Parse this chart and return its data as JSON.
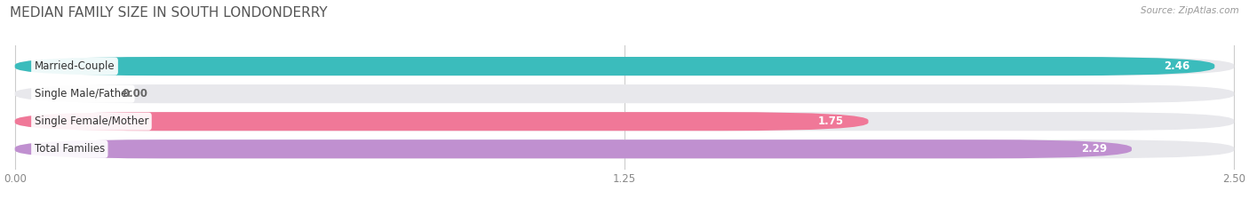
{
  "title": "MEDIAN FAMILY SIZE IN SOUTH LONDONDERRY",
  "source": "Source: ZipAtlas.com",
  "categories": [
    "Married-Couple",
    "Single Male/Father",
    "Single Female/Mother",
    "Total Families"
  ],
  "values": [
    2.46,
    0.0,
    1.75,
    2.29
  ],
  "colors": [
    "#3bbcbc",
    "#a8b8e8",
    "#f07898",
    "#c090d0"
  ],
  "xlim": [
    0,
    2.5
  ],
  "xticks": [
    0.0,
    1.25,
    2.5
  ],
  "xtick_labels": [
    "0.00",
    "1.25",
    "2.50"
  ],
  "bar_height": 0.68,
  "background_color": "#ffffff",
  "bar_bg_color": "#e8e8ec",
  "title_fontsize": 11,
  "label_fontsize": 8.5,
  "value_fontsize": 8.5,
  "source_fontsize": 7.5
}
